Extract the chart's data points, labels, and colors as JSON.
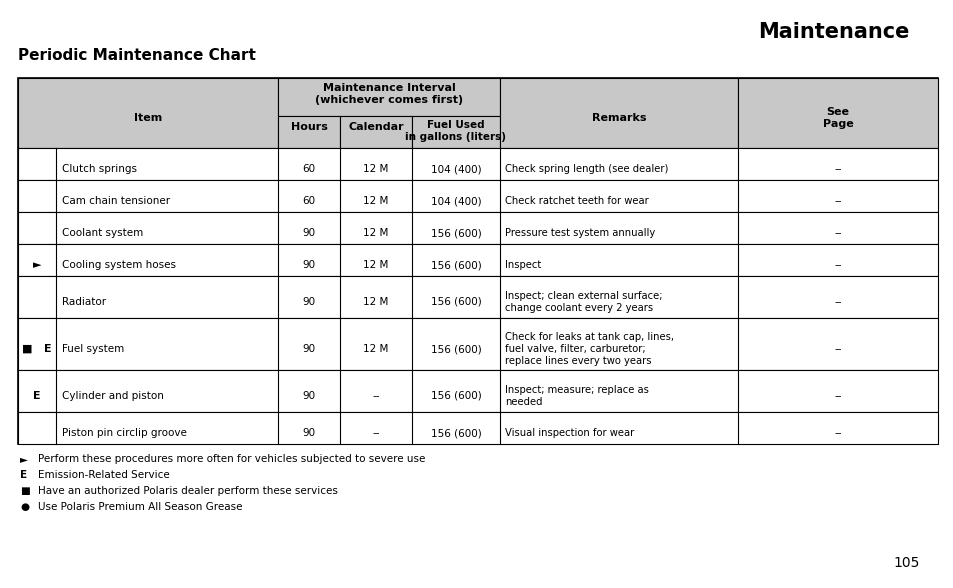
{
  "title": "Maintenance",
  "subtitle": "Periodic Maintenance Chart",
  "page_number": "105",
  "background_color": "#ffffff",
  "header_fill": "#c8c8c8",
  "rows": [
    [
      "",
      "Clutch springs",
      "60",
      "12 M",
      "104 (400)",
      "Check spring length (see dealer)",
      "--"
    ],
    [
      "",
      "Cam chain tensioner",
      "60",
      "12 M",
      "104 (400)",
      "Check ratchet teeth for wear",
      "--"
    ],
    [
      "",
      "Coolant system",
      "90",
      "12 M",
      "156 (600)",
      "Pressure test system annually",
      "--"
    ],
    [
      "►",
      "Cooling system hoses",
      "90",
      "12 M",
      "156 (600)",
      "Inspect",
      "--"
    ],
    [
      "",
      "Radiator",
      "90",
      "12 M",
      "156 (600)",
      "Inspect; clean external surface;\nchange coolant every 2 years",
      "--"
    ],
    [
      "■E",
      "Fuel system",
      "90",
      "12 M",
      "156 (600)",
      "Check for leaks at tank cap, lines,\nfuel valve, filter, carburetor;\nreplace lines every two years",
      "--"
    ],
    [
      "E",
      "Cylinder and piston",
      "90",
      "--",
      "156 (600)",
      "Inspect; measure; replace as\nneeded",
      "--"
    ],
    [
      "",
      "Piston pin circlip groove",
      "90",
      "--",
      "156 (600)",
      "Visual inspection for wear",
      "--"
    ]
  ],
  "footnotes": [
    [
      "►",
      "Perform these procedures more often for vehicles subjected to severe use"
    ],
    [
      "E",
      "Emission-Related Service"
    ],
    [
      "■",
      "Have an authorized Polaris dealer perform these services"
    ],
    [
      "●",
      "Use Polaris Premium All Season Grease"
    ]
  ]
}
